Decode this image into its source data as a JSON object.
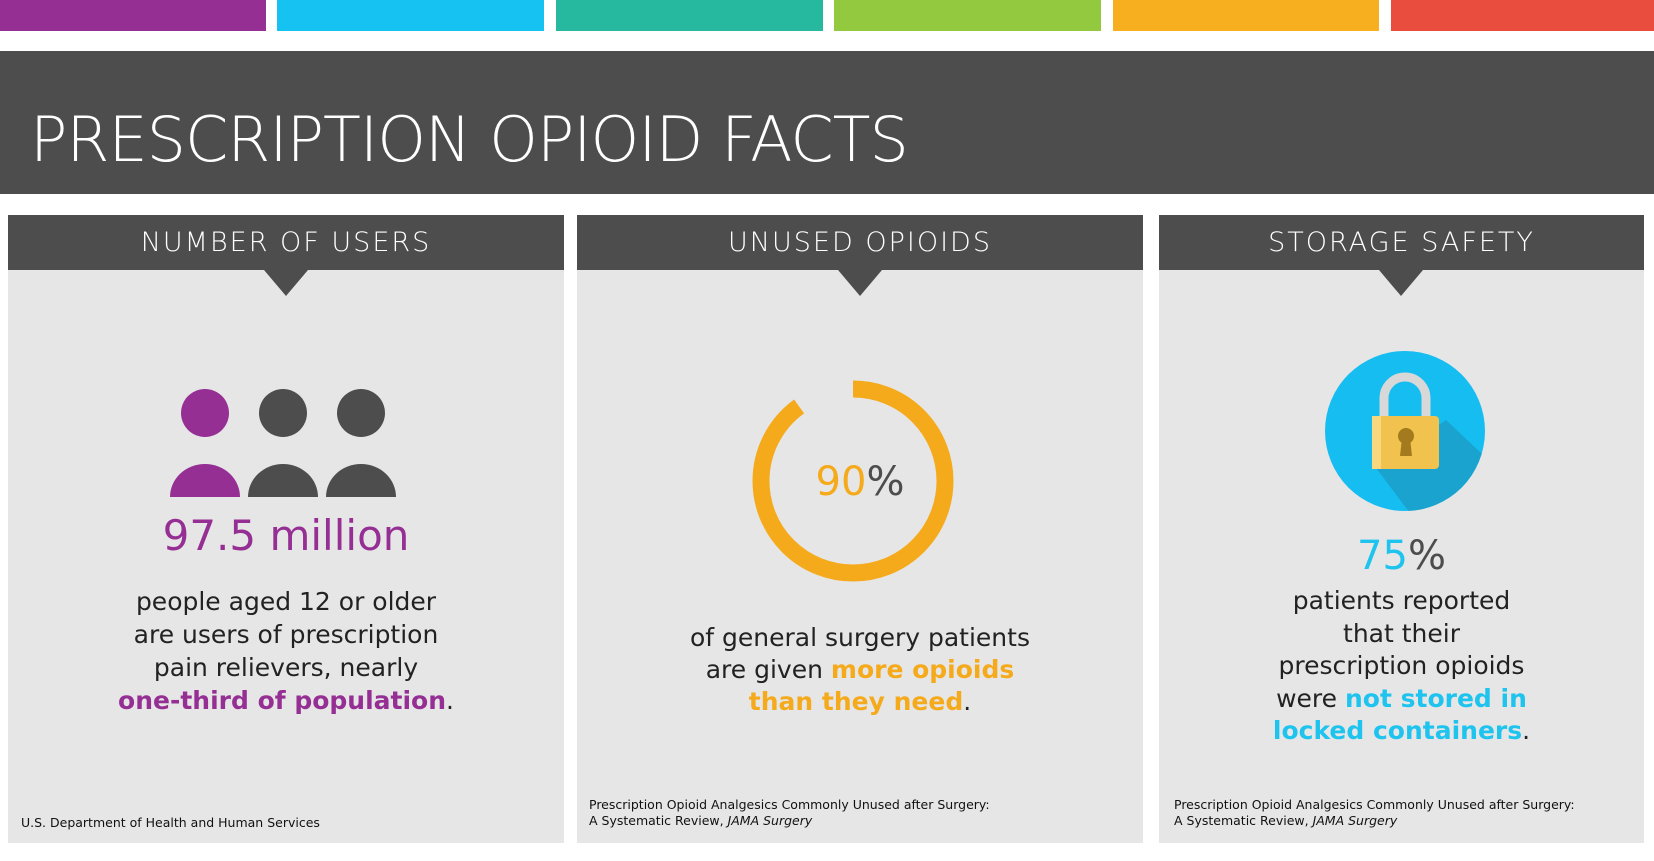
{
  "colors": {
    "purple": "#952f94",
    "cyan": "#15c2f1",
    "teal": "#26b99f",
    "green": "#93c93f",
    "orange": "#f7ae1f",
    "red": "#e84d3d",
    "dark": "#4d4d4d",
    "panel": "#e6e6e6"
  },
  "title": "PRESCRIPTION OPIOID FACTS",
  "cards": [
    {
      "header": "NUMBER OF USERS",
      "icon": "three-people-icon",
      "figure": "97.5 million",
      "lines": [
        "people aged 12 or older",
        "are users of prescription",
        "pain relievers, nearly"
      ],
      "highlight": "one-third of population",
      "end": ".",
      "source": "U.S. Department of Health and Human Services"
    },
    {
      "header": "UNUSED OPIOIDS",
      "icon": "ring-gauge",
      "percent_value": "90",
      "percent_sign": "%",
      "gauge_fraction": 0.9,
      "lines": [
        "of general surgery patients",
        "are given"
      ],
      "highlight_a": "more opioids",
      "highlight_b": "than they need",
      "end": ".",
      "source_line1": "Prescription Opioid Analgesics Commonly Unused after Surgery:",
      "source_line2_prefix": "A Systematic Review, ",
      "source_journal": "JAMA Surgery"
    },
    {
      "header": "STORAGE SAFETY",
      "icon": "padlock-icon",
      "percent_value": "75",
      "percent_sign": "%",
      "lines": [
        "patients reported",
        "that their",
        "prescription opioids",
        "were"
      ],
      "highlight_a": "not stored in",
      "highlight_b": "locked containers",
      "end": ".",
      "source_line1": "Prescription Opioid Analgesics Commonly Unused after Surgery:",
      "source_line2_prefix": "A Systematic Review, ",
      "source_journal": "JAMA Surgery"
    }
  ]
}
